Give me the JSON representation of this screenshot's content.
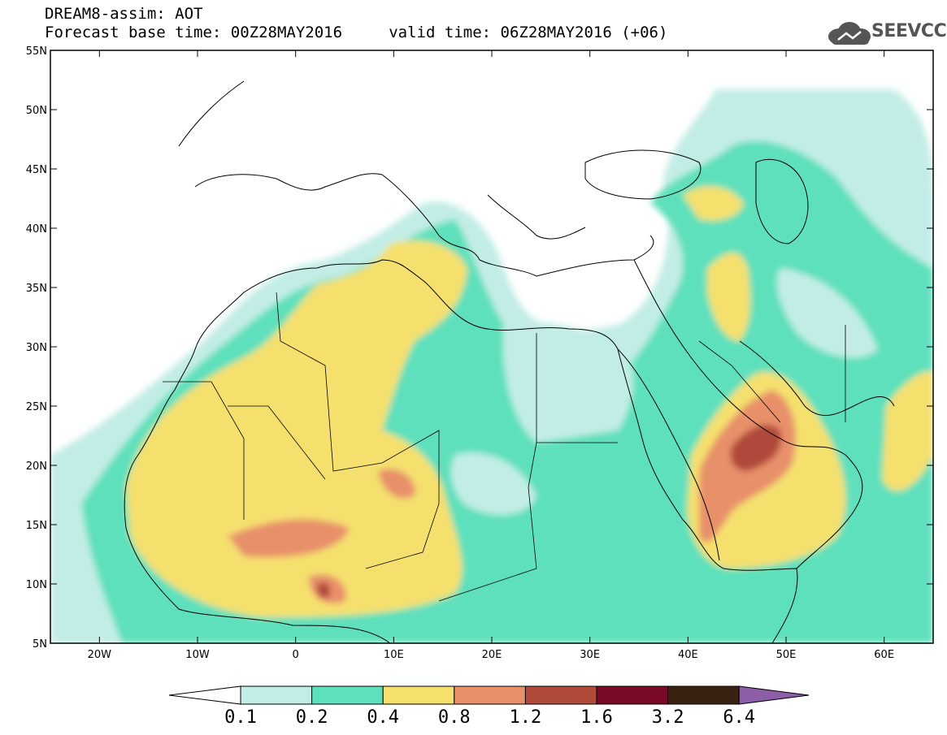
{
  "header": {
    "title_line1": "DREAM8-assim: AOT",
    "title_line2": "Forecast base time: 00Z28MAY2016     valid time: 06Z28MAY2016 (+06)"
  },
  "logo": {
    "text": "SEEVCCC",
    "icon": "cloud-icon",
    "color": "#555555"
  },
  "map": {
    "projection": "lat-lon",
    "lon_range": [
      -25,
      65
    ],
    "lat_range": [
      5,
      55
    ],
    "lat_ticks": [
      {
        "value": 55,
        "label": "55N"
      },
      {
        "value": 50,
        "label": "50N"
      },
      {
        "value": 45,
        "label": "45N"
      },
      {
        "value": 40,
        "label": "40N"
      },
      {
        "value": 35,
        "label": "35N"
      },
      {
        "value": 30,
        "label": "30N"
      },
      {
        "value": 25,
        "label": "25N"
      },
      {
        "value": 20,
        "label": "20N"
      },
      {
        "value": 15,
        "label": "15N"
      },
      {
        "value": 10,
        "label": "10N"
      },
      {
        "value": 5,
        "label": "5N"
      }
    ],
    "lon_ticks": [
      {
        "value": -20,
        "label": "20W"
      },
      {
        "value": -10,
        "label": "10W"
      },
      {
        "value": 0,
        "label": "0"
      },
      {
        "value": 10,
        "label": "10E"
      },
      {
        "value": 20,
        "label": "20E"
      },
      {
        "value": 30,
        "label": "30E"
      },
      {
        "value": 40,
        "label": "40E"
      },
      {
        "value": 50,
        "label": "50E"
      },
      {
        "value": 60,
        "label": "60E"
      }
    ]
  },
  "colorbar": {
    "levels": [
      "0.1",
      "0.2",
      "0.4",
      "0.8",
      "1.2",
      "1.6",
      "3.2",
      "6.4"
    ],
    "colors": [
      "#ffffff",
      "#c2ede6",
      "#5ee0bc",
      "#f5e06e",
      "#e8906a",
      "#b04a3a",
      "#7a0a28",
      "#3a2212",
      "#8c5fa8"
    ]
  }
}
